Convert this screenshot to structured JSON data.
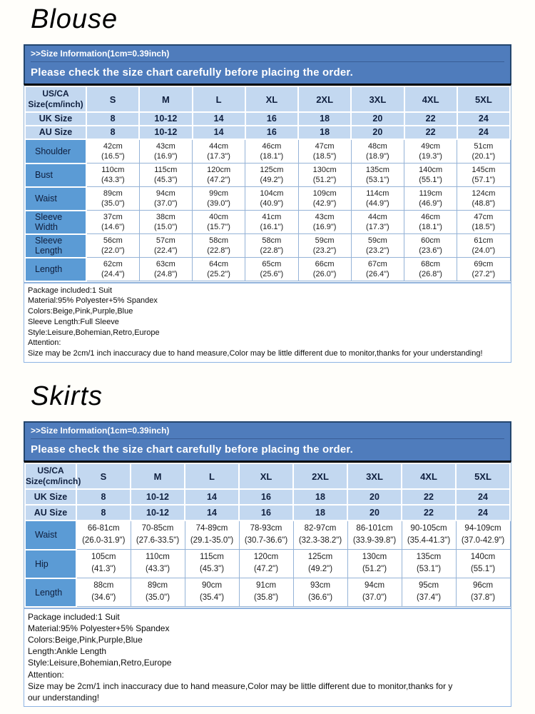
{
  "colors": {
    "banner_blue": "#4f7cbc",
    "banner_border": "#24466e",
    "header_light_blue": "#c3d8f0",
    "label_blue": "#5b9bd5",
    "grid_border": "#95b3d7",
    "notes_border": "#8eb4e3"
  },
  "sections": [
    {
      "title": "Blouse",
      "info_line1": ">>Size Information(1cm=0.39inch)",
      "info_line2": "Please check the size chart carefully before placing the order.",
      "table": {
        "corner_line1": "US/CA",
        "corner_line2": "Size(cm/inch)",
        "size_headers": [
          "S",
          "M",
          "L",
          "XL",
          "2XL",
          "3XL",
          "4XL",
          "5XL"
        ],
        "simple_rows": [
          {
            "label": "UK Size",
            "values": [
              "8",
              "10-12",
              "14",
              "16",
              "18",
              "20",
              "22",
              "24"
            ]
          },
          {
            "label": "AU Size",
            "values": [
              "8",
              "10-12",
              "14",
              "16",
              "18",
              "20",
              "22",
              "24"
            ]
          }
        ],
        "measure_rows": [
          {
            "label": "Shoulder",
            "cm": [
              "42cm",
              "43cm",
              "44cm",
              "46cm",
              "47cm",
              "48cm",
              "49cm",
              "51cm"
            ],
            "inch": [
              "(16.5\")",
              "(16.9\")",
              "(17.3\")",
              "(18.1\")",
              "(18.5\")",
              "(18.9\")",
              "(19.3\")",
              "(20.1\")"
            ]
          },
          {
            "label": "Bust",
            "cm": [
              "110cm",
              "115cm",
              "120cm",
              "125cm",
              "130cm",
              "135cm",
              "140cm",
              "145cm"
            ],
            "inch": [
              "(43.3\")",
              "(45.3\")",
              "(47.2\")",
              "(49.2\")",
              "(51.2\")",
              "(53.1\")",
              "(55.1\")",
              "(57.1\")"
            ]
          },
          {
            "label": "Waist",
            "cm": [
              "89cm",
              "94cm",
              "99cm",
              "104cm",
              "109cm",
              "114cm",
              "119cm",
              "124cm"
            ],
            "inch": [
              "(35.0\")",
              "(37.0\")",
              "(39.0\")",
              "(40.9\")",
              "(42.9\")",
              "(44.9\")",
              "(46.9\")",
              "(48.8\")"
            ]
          },
          {
            "label": "Sleeve Width",
            "cm": [
              "37cm",
              "38cm",
              "40cm",
              "41cm",
              "43cm",
              "44cm",
              "46cm",
              "47cm"
            ],
            "inch": [
              "(14.6\")",
              "(15.0\")",
              "(15.7\")",
              "(16.1\")",
              "(16.9\")",
              "(17.3\")",
              "(18.1\")",
              "(18.5\")"
            ]
          },
          {
            "label": "Sleeve Length",
            "cm": [
              "56cm",
              "57cm",
              "58cm",
              "58cm",
              "59cm",
              "59cm",
              "60cm",
              "61cm"
            ],
            "inch": [
              "(22.0\")",
              "(22.4\")",
              "(22.8\")",
              "(22.8\")",
              "(23.2\")",
              "(23.2\")",
              "(23.6\")",
              "(24.0\")"
            ]
          },
          {
            "label": "Length",
            "cm": [
              "62cm",
              "63cm",
              "64cm",
              "65cm",
              "66cm",
              "67cm",
              "68cm",
              "69cm"
            ],
            "inch": [
              "(24.4\")",
              "(24.8\")",
              "(25.2\")",
              "(25.6\")",
              "(26.0\")",
              "(26.4\")",
              "(26.8\")",
              "(27.2\")"
            ]
          }
        ]
      },
      "notes": [
        "Package included:1 Suit",
        "Material:95% Polyester+5% Spandex",
        "Colors:Beige,Pink,Purple,Blue",
        "Sleeve Length:Full Sleeve",
        "Style:Leisure,Bohemian,Retro,Europe",
        "Attention:",
        "Size may be 2cm/1 inch inaccuracy due to hand measure,Color may be little different due to monitor,thanks for your understanding!"
      ]
    },
    {
      "title": "Skirts",
      "info_line1": ">>Size Information(1cm=0.39inch)",
      "info_line2": "Please check the size chart carefully before placing the order.",
      "table": {
        "corner_line1": "US/CA",
        "corner_line2": "Size(cm/inch)",
        "size_headers": [
          "S",
          "M",
          "L",
          "XL",
          "2XL",
          "3XL",
          "4XL",
          "5XL"
        ],
        "simple_rows": [
          {
            "label": "UK Size",
            "values": [
              "8",
              "10-12",
              "14",
              "16",
              "18",
              "20",
              "22",
              "24"
            ]
          },
          {
            "label": "AU Size",
            "values": [
              "8",
              "10-12",
              "14",
              "16",
              "18",
              "20",
              "22",
              "24"
            ]
          }
        ],
        "measure_rows": [
          {
            "label": "Waist",
            "cm": [
              "66-81cm",
              "70-85cm",
              "74-89cm",
              "78-93cm",
              "82-97cm",
              "86-101cm",
              "90-105cm",
              "94-109cm"
            ],
            "inch": [
              "(26.0-31.9\")",
              "(27.6-33.5\")",
              "(29.1-35.0\")",
              "(30.7-36.6\")",
              "(32.3-38.2\")",
              "(33.9-39.8\")",
              "(35.4-41.3\")",
              "(37.0-42.9\")"
            ]
          },
          {
            "label": "Hip",
            "cm": [
              "105cm",
              "110cm",
              "115cm",
              "120cm",
              "125cm",
              "130cm",
              "135cm",
              "140cm"
            ],
            "inch": [
              "(41.3\")",
              "(43.3\")",
              "(45.3\")",
              "(47.2\")",
              "(49.2\")",
              "(51.2\")",
              "(53.1\")",
              "(55.1\")"
            ]
          },
          {
            "label": "Length",
            "cm": [
              "88cm",
              "89cm",
              "90cm",
              "91cm",
              "93cm",
              "94cm",
              "95cm",
              "96cm"
            ],
            "inch": [
              "(34.6\")",
              "(35.0\")",
              "(35.4\")",
              "(35.8\")",
              "(36.6\")",
              "(37.0\")",
              "(37.4\")",
              "(37.8\")"
            ]
          }
        ]
      },
      "notes": [
        "Package included:1 Suit",
        "Material:95% Polyester+5% Spandex",
        "Colors:Beige,Pink,Purple,Blue",
        "Length:Ankle Length",
        "Style:Leisure,Bohemian,Retro,Europe",
        "Attention:",
        "Size may be 2cm/1 inch inaccuracy due to hand measure,Color may be little different due to monitor,thanks for y",
        "our understanding!"
      ]
    }
  ]
}
